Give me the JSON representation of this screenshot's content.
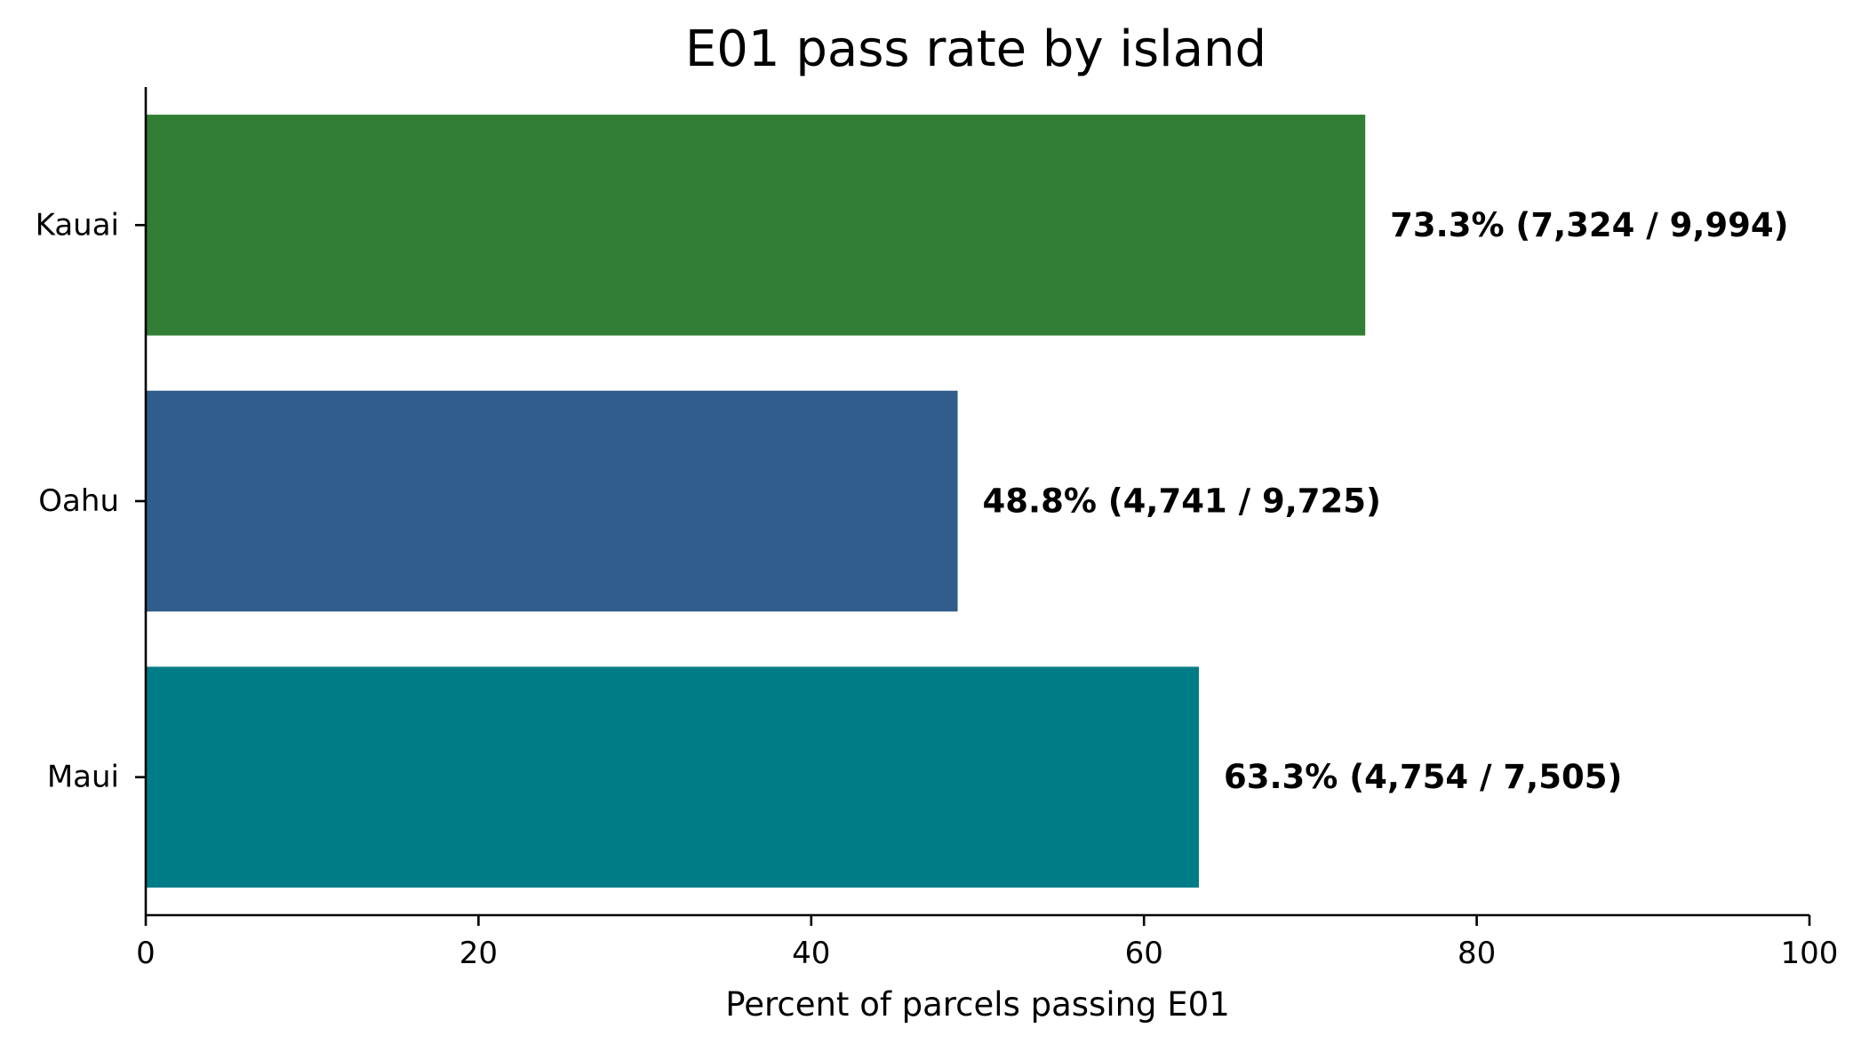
{
  "chart_data": {
    "type": "bar",
    "orientation": "horizontal",
    "title": "E01 pass rate by island",
    "xlabel": "Percent of parcels passing E01",
    "ylabel": "",
    "xlim": [
      0,
      100
    ],
    "xticks": [
      0,
      20,
      40,
      60,
      80,
      100
    ],
    "grid": false,
    "legend": "none",
    "categories": [
      "Kauai",
      "Oahu",
      "Maui"
    ],
    "values": [
      73.3,
      48.8,
      63.3
    ],
    "colors": [
      "#317e34",
      "#305d8c",
      "#007c86"
    ],
    "data_labels": [
      "73.3%  (7,324 / 9,994)",
      "48.8%  (4,741 / 9,725)",
      "63.3%  (4,754 / 7,505)"
    ]
  }
}
